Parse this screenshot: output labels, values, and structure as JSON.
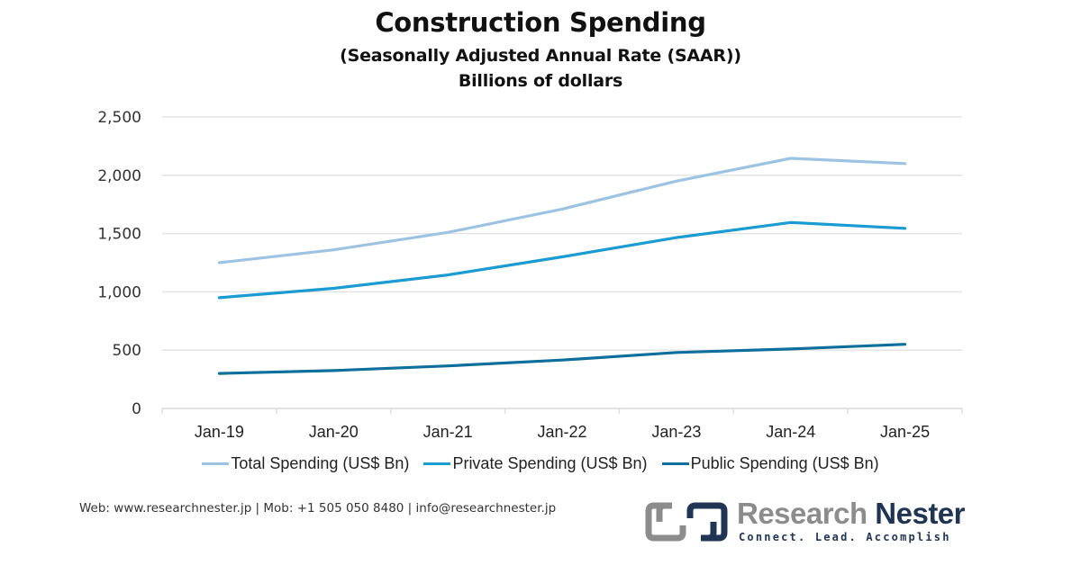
{
  "colors": {
    "total": "#9dc3e2",
    "private": "#1a9bd1",
    "public": "#0e6f9c",
    "gridline": "#e2e2e2",
    "logo_gray": "#8c8c8c",
    "logo_navy": "#1f3553"
  },
  "chart_data": {
    "type": "line",
    "title": "Construction Spending",
    "subtitle": "(Seasonally Adjusted Annual Rate (SAAR))",
    "subtitle2": "Billions of dollars",
    "xlabel": "",
    "ylabel": "",
    "categories": [
      "Jan-19",
      "Jan-20",
      "Jan-21",
      "Jan-22",
      "Jan-23",
      "Jan-24",
      "Jan-25"
    ],
    "ylim": [
      0,
      2500
    ],
    "yticks": [
      0,
      500,
      1000,
      1500,
      2000,
      2500
    ],
    "ytick_labels": [
      "0",
      "500",
      "1,000",
      "1,500",
      "2,000",
      "2,500"
    ],
    "grid": true,
    "legend_position": "bottom",
    "series": [
      {
        "key": "total",
        "name": "Total Spending (US$ Bn)",
        "values": [
          1250,
          1360,
          1510,
          1710,
          1950,
          2145,
          2100
        ]
      },
      {
        "key": "private",
        "name": "Private Spending (US$ Bn)",
        "values": [
          950,
          1030,
          1145,
          1300,
          1465,
          1595,
          1545
        ]
      },
      {
        "key": "public",
        "name": "Public Spending (US$ Bn)",
        "values": [
          300,
          325,
          365,
          415,
          480,
          510,
          550
        ]
      }
    ]
  },
  "footer": {
    "contact": "Web: www.researchnester.jp | Mob: +1 505 050 8480 | info@researchnester.jp"
  },
  "logo": {
    "word1": "Research",
    "word2": "Nester",
    "tagline": "Connect. Lead. Accomplish"
  }
}
